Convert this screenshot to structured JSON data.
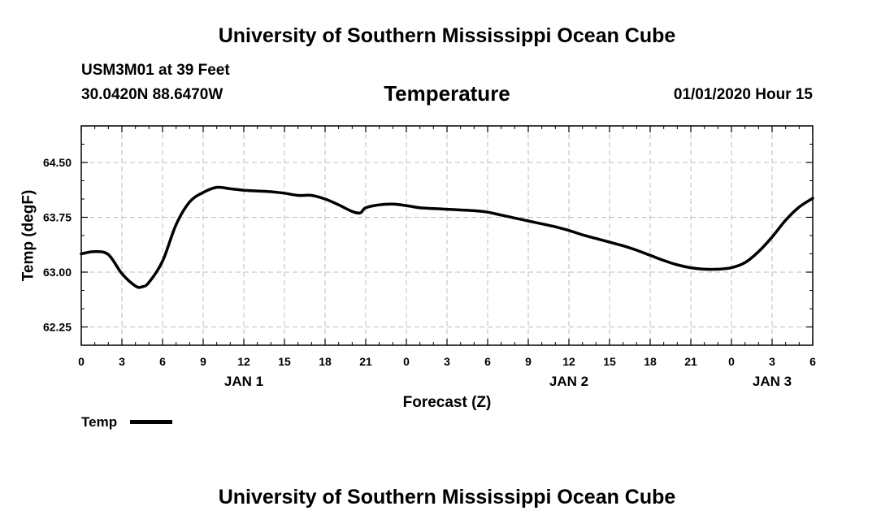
{
  "header": {
    "title": "University of Southern Mississippi Ocean Cube",
    "station": "USM3M01 at 39 Feet",
    "coords": "30.0420N 88.6470W",
    "plot_title": "Temperature",
    "date": "01/01/2020 Hour 15"
  },
  "footer": {
    "title": "University of Southern Mississippi Ocean Cube"
  },
  "legend": {
    "label": "Temp"
  },
  "chart_data": {
    "type": "line",
    "title": "Temperature",
    "xlabel": "Forecast (Z)",
    "ylabel": "Temp (degF)",
    "xlim": [
      0,
      54
    ],
    "ylim": [
      62.0,
      65.0
    ],
    "grid": true,
    "legend_position": "bottom-left",
    "line_color": "#000000",
    "x_ticks": [
      0,
      3,
      6,
      9,
      12,
      15,
      18,
      21,
      24,
      27,
      30,
      33,
      36,
      39,
      42,
      45,
      48,
      51,
      54
    ],
    "x_tick_labels": [
      "0",
      "3",
      "6",
      "9",
      "12",
      "15",
      "18",
      "21",
      "0",
      "3",
      "6",
      "9",
      "12",
      "15",
      "18",
      "21",
      "0",
      "3",
      "6"
    ],
    "day_labels": [
      {
        "x": 12,
        "label": "JAN 1"
      },
      {
        "x": 36,
        "label": "JAN 2"
      },
      {
        "x": 51,
        "label": "JAN 3"
      }
    ],
    "y_ticks": [
      62.25,
      63.0,
      63.75,
      64.5
    ],
    "y_tick_labels": [
      "62.25",
      "63.00",
      "63.75",
      "64.50"
    ],
    "series": [
      {
        "name": "Temp",
        "x": [
          0,
          1,
          2,
          3,
          4,
          4.5,
          5,
          6,
          7,
          8,
          9,
          10,
          11,
          12,
          13,
          14,
          15,
          16,
          17,
          18,
          19,
          20,
          20.6,
          21,
          22,
          23,
          24,
          25,
          26,
          27,
          28,
          29,
          30,
          31,
          32,
          33,
          34,
          35,
          36,
          37,
          38,
          39,
          40,
          41,
          42,
          43,
          44,
          45,
          46,
          47,
          48,
          49,
          50,
          51,
          52,
          53,
          54
        ],
        "y": [
          63.25,
          63.28,
          63.24,
          62.98,
          62.81,
          62.8,
          62.86,
          63.15,
          63.65,
          63.96,
          64.09,
          64.16,
          64.14,
          64.12,
          64.11,
          64.1,
          64.08,
          64.05,
          64.05,
          64.0,
          63.92,
          63.83,
          63.81,
          63.88,
          63.92,
          63.93,
          63.91,
          63.88,
          63.87,
          63.86,
          63.85,
          63.84,
          63.82,
          63.78,
          63.74,
          63.7,
          63.66,
          63.62,
          63.57,
          63.51,
          63.46,
          63.41,
          63.36,
          63.3,
          63.23,
          63.16,
          63.1,
          63.06,
          63.04,
          63.04,
          63.06,
          63.13,
          63.28,
          63.48,
          63.71,
          63.89,
          64.01
        ]
      }
    ]
  }
}
